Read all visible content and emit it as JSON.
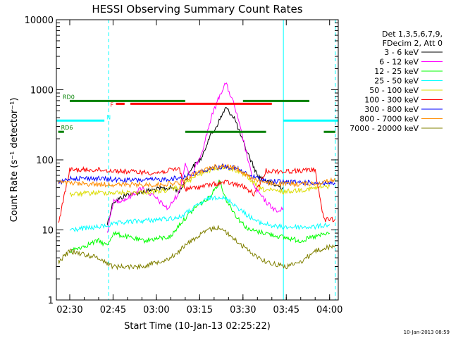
{
  "chart_data": {
    "type": "line",
    "title": "HESSI Observing Summary Count Rates",
    "xlabel": "Start Time (10-Jan-13 02:25:22)",
    "ylabel": "Count Rate (s⁻¹ detector⁻¹)",
    "xlim": [
      "02:25:22",
      "04:03:00"
    ],
    "ylim": [
      1,
      10000
    ],
    "yscale": "log",
    "grid": false,
    "legend_position": "right",
    "x_ticks": [
      "02:30",
      "02:45",
      "03:00",
      "03:15",
      "03:30",
      "03:45",
      "04:00"
    ],
    "y_ticks": [
      "1",
      "10",
      "100",
      "1000",
      "10000"
    ],
    "legend_header": [
      "Det 1,3,5,6,7,9,",
      "FDecim 2, Att 0"
    ],
    "timestamp": "10-Jan-2013 08:59",
    "series": [
      {
        "name": "3 - 6 keV",
        "color": "#000000",
        "points": [
          [
            "02:43:00",
            12
          ],
          [
            "02:45:00",
            25
          ],
          [
            "02:50:00",
            32
          ],
          [
            "03:00:00",
            38
          ],
          [
            "03:06:00",
            40
          ],
          [
            "03:08:00",
            35
          ],
          [
            "03:12:00",
            75
          ],
          [
            "03:16:00",
            110
          ],
          [
            "03:18:00",
            200
          ],
          [
            "03:20:00",
            260
          ],
          [
            "03:24:00",
            550
          ],
          [
            "03:27:00",
            400
          ],
          [
            "03:30:00",
            180
          ],
          [
            "03:35:00",
            60
          ],
          [
            "03:40:00",
            45
          ],
          [
            "03:44:00",
            40
          ]
        ]
      },
      {
        "name": "6 - 12 keV",
        "color": "#ff00ff",
        "points": [
          [
            "02:43:00",
            9
          ],
          [
            "02:45:00",
            25
          ],
          [
            "02:50:00",
            28
          ],
          [
            "02:55:00",
            40
          ],
          [
            "03:00:00",
            28
          ],
          [
            "03:04:00",
            20
          ],
          [
            "03:08:00",
            35
          ],
          [
            "03:10:00",
            90
          ],
          [
            "03:12:00",
            55
          ],
          [
            "03:16:00",
            140
          ],
          [
            "03:19:00",
            400
          ],
          [
            "03:22:00",
            850
          ],
          [
            "03:24:00",
            1250
          ],
          [
            "03:27:00",
            600
          ],
          [
            "03:30:00",
            200
          ],
          [
            "03:34:00",
            40
          ],
          [
            "03:38:00",
            25
          ],
          [
            "03:42:00",
            18
          ],
          [
            "03:44:00",
            20
          ]
        ]
      },
      {
        "name": "12 - 25 keV",
        "color": "#00ff00",
        "points": [
          [
            "02:30:00",
            5
          ],
          [
            "02:40:00",
            7
          ],
          [
            "02:43:00",
            6
          ],
          [
            "02:45:00",
            9
          ],
          [
            "02:55:00",
            7
          ],
          [
            "03:05:00",
            8
          ],
          [
            "03:08:00",
            12
          ],
          [
            "03:14:00",
            22
          ],
          [
            "03:18:00",
            28
          ],
          [
            "03:22:00",
            50
          ],
          [
            "03:24:00",
            28
          ],
          [
            "03:28:00",
            15
          ],
          [
            "03:32:00",
            10
          ],
          [
            "03:38:00",
            9
          ],
          [
            "03:43:00",
            8
          ],
          [
            "03:50:00",
            7
          ],
          [
            "03:55:00",
            8
          ],
          [
            "04:00:00",
            9
          ]
        ]
      },
      {
        "name": "25 - 50 keV",
        "color": "#00ffff",
        "points": [
          [
            "02:30:00",
            10
          ],
          [
            "02:40:00",
            11
          ],
          [
            "02:45:00",
            12
          ],
          [
            "02:50:00",
            13
          ],
          [
            "03:00:00",
            14
          ],
          [
            "03:08:00",
            15
          ],
          [
            "03:14:00",
            22
          ],
          [
            "03:18:00",
            28
          ],
          [
            "03:22:00",
            30
          ],
          [
            "03:26:00",
            25
          ],
          [
            "03:30:00",
            18
          ],
          [
            "03:35:00",
            13
          ],
          [
            "03:42:00",
            11
          ],
          [
            "03:50:00",
            11
          ],
          [
            "03:55:00",
            11
          ],
          [
            "04:00:00",
            12
          ]
        ]
      },
      {
        "name": "50 - 100 keV",
        "color": "#dcdc00",
        "points": [
          [
            "02:30:00",
            32
          ],
          [
            "02:40:00",
            34
          ],
          [
            "02:50:00",
            34
          ],
          [
            "03:00:00",
            35
          ],
          [
            "03:08:00",
            40
          ],
          [
            "03:14:00",
            60
          ],
          [
            "03:20:00",
            75
          ],
          [
            "03:24:00",
            78
          ],
          [
            "03:28:00",
            70
          ],
          [
            "03:32:00",
            55
          ],
          [
            "03:36:00",
            38
          ],
          [
            "03:44:00",
            35
          ],
          [
            "03:52:00",
            38
          ],
          [
            "04:00:00",
            42
          ]
        ]
      },
      {
        "name": "100 - 300 keV",
        "color": "#ff0000",
        "points": [
          [
            "02:26:00",
            12
          ],
          [
            "02:30:00",
            72
          ],
          [
            "02:40:00",
            72
          ],
          [
            "02:50:00",
            68
          ],
          [
            "03:00:00",
            65
          ],
          [
            "03:08:00",
            75
          ],
          [
            "03:10:00",
            38
          ],
          [
            "03:20:00",
            45
          ],
          [
            "03:24:00",
            48
          ],
          [
            "03:30:00",
            42
          ],
          [
            "03:34:00",
            32
          ],
          [
            "03:38:00",
            70
          ],
          [
            "03:44:00",
            68
          ],
          [
            "03:55:00",
            72
          ],
          [
            "03:58:00",
            14
          ],
          [
            "04:02:00",
            14
          ]
        ]
      },
      {
        "name": "300 - 800 keV",
        "color": "#0000ff",
        "points": [
          [
            "02:26:00",
            45
          ],
          [
            "02:30:00",
            55
          ],
          [
            "02:40:00",
            54
          ],
          [
            "02:50:00",
            51
          ],
          [
            "03:00:00",
            52
          ],
          [
            "03:08:00",
            55
          ],
          [
            "03:14:00",
            65
          ],
          [
            "03:20:00",
            78
          ],
          [
            "03:24:00",
            80
          ],
          [
            "03:28:00",
            75
          ],
          [
            "03:32:00",
            60
          ],
          [
            "03:38:00",
            50
          ],
          [
            "03:46:00",
            48
          ],
          [
            "03:55:00",
            47
          ],
          [
            "04:02:00",
            46
          ]
        ]
      },
      {
        "name": "800 - 7000 keV",
        "color": "#ff8c00",
        "points": [
          [
            "02:26:00",
            48
          ],
          [
            "02:30:00",
            46
          ],
          [
            "02:40:00",
            45
          ],
          [
            "02:50:00",
            44
          ],
          [
            "03:00:00",
            44
          ],
          [
            "03:08:00",
            47
          ],
          [
            "03:14:00",
            65
          ],
          [
            "03:20:00",
            80
          ],
          [
            "03:24:00",
            82
          ],
          [
            "03:28:00",
            75
          ],
          [
            "03:32:00",
            58
          ],
          [
            "03:38:00",
            46
          ],
          [
            "03:46:00",
            45
          ],
          [
            "03:55:00",
            46
          ],
          [
            "04:02:00",
            52
          ]
        ]
      },
      {
        "name": "7000 - 20000 keV",
        "color": "#808000",
        "points": [
          [
            "02:26:00",
            3.5
          ],
          [
            "02:30:00",
            5
          ],
          [
            "02:40:00",
            4
          ],
          [
            "02:45:00",
            3
          ],
          [
            "02:55:00",
            3
          ],
          [
            "03:05:00",
            4
          ],
          [
            "03:12:00",
            7
          ],
          [
            "03:18:00",
            10
          ],
          [
            "03:22:00",
            11
          ],
          [
            "03:26:00",
            8
          ],
          [
            "03:32:00",
            5
          ],
          [
            "03:38:00",
            3.5
          ],
          [
            "03:45:00",
            3
          ],
          [
            "03:50:00",
            3.5
          ],
          [
            "03:55:00",
            5
          ],
          [
            "04:02:00",
            6
          ]
        ]
      }
    ],
    "flag_bars": [
      {
        "label": "N",
        "color": "#00ffff",
        "level": 0.64,
        "segments": [
          [
            "02:25:30",
            "02:42:00"
          ],
          [
            "03:44:00",
            "04:03:00"
          ]
        ]
      },
      {
        "label": "F",
        "color": "#ff0000",
        "level": 0.7,
        "segments": [
          [
            "02:46:00",
            "02:49:00"
          ],
          [
            "02:51:00",
            "03:40:00"
          ]
        ]
      },
      {
        "label": "RD0",
        "color": "#008000",
        "level": 0.71,
        "segments": [
          [
            "02:30:00",
            "03:10:00"
          ],
          [
            "03:30:00",
            "03:53:00"
          ]
        ]
      },
      {
        "label": "RD6",
        "color": "#008000",
        "level": 0.6,
        "segments": [
          [
            "02:26:00",
            "02:28:00"
          ],
          [
            "03:10:00",
            "03:38:00"
          ],
          [
            "03:58:00",
            "04:02:00"
          ]
        ]
      }
    ],
    "markers": [
      {
        "time": "02:25:22",
        "color": "#00ffff",
        "style": "solid"
      },
      {
        "time": "02:43:30",
        "color": "#00ffff",
        "style": "dashed"
      },
      {
        "time": "03:44:00",
        "color": "#00ffff",
        "style": "solid"
      },
      {
        "time": "04:02:00",
        "color": "#00ffff",
        "style": "dashed"
      }
    ]
  }
}
